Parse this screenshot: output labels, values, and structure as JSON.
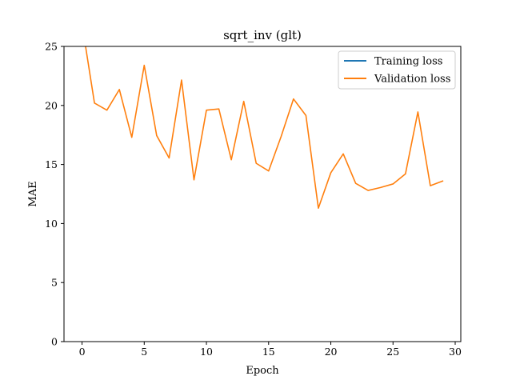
{
  "chart_data": {
    "type": "line",
    "title": "sqrt_inv (glt)",
    "xlabel": "Epoch",
    "ylabel": "MAE",
    "xlim": [
      -1.45,
      30.45
    ],
    "ylim": [
      0,
      25
    ],
    "xticks": [
      0,
      5,
      10,
      15,
      20,
      25,
      30
    ],
    "yticks": [
      0,
      5,
      10,
      15,
      20,
      25
    ],
    "grid": false,
    "legend_position": "top-right",
    "series": [
      {
        "name": "Training loss",
        "color": "#1f77b4",
        "x": [],
        "y": []
      },
      {
        "name": "Validation loss",
        "color": "#ff7f0e",
        "x": [
          0,
          1,
          2,
          3,
          4,
          5,
          6,
          7,
          8,
          9,
          10,
          11,
          12,
          13,
          14,
          15,
          16,
          17,
          18,
          19,
          20,
          21,
          22,
          23,
          24,
          25,
          26,
          27,
          28,
          29
        ],
        "y": [
          26.9,
          20.2,
          19.6,
          21.35,
          17.3,
          23.4,
          17.45,
          15.55,
          22.15,
          13.7,
          19.6,
          19.7,
          15.4,
          20.35,
          15.1,
          14.45,
          17.35,
          20.55,
          19.15,
          11.3,
          14.3,
          15.9,
          13.4,
          12.8,
          13.05,
          13.35,
          14.2,
          19.45,
          13.2,
          13.6
        ]
      }
    ]
  }
}
